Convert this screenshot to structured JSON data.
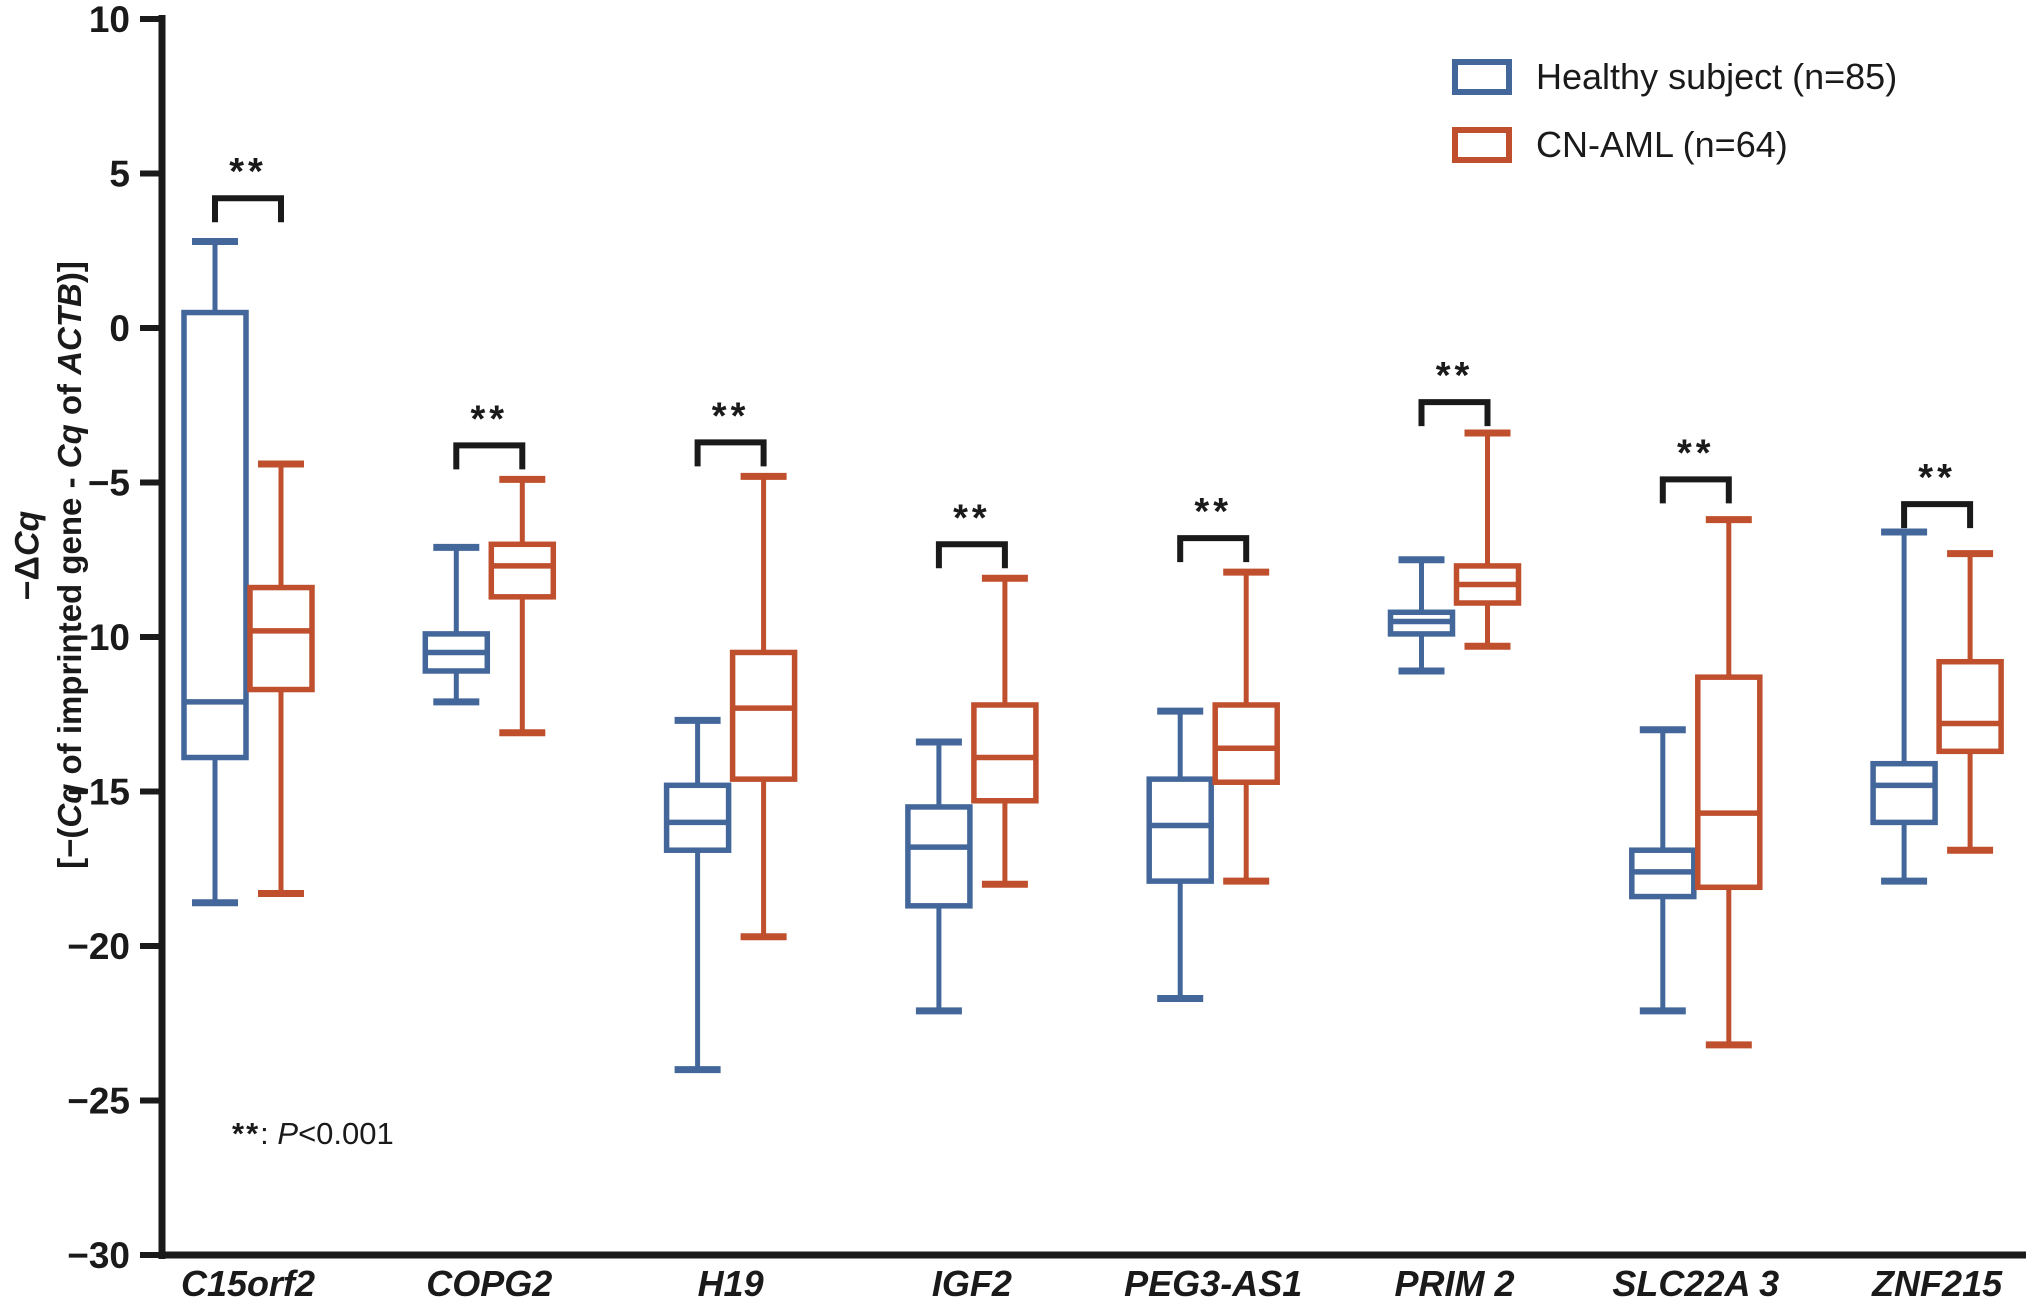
{
  "colors": {
    "healthy": "#43679b",
    "cnaml": "#bf4f2d",
    "axis": "#1a1a1a",
    "background": "#ffffff"
  },
  "legend": {
    "items": [
      {
        "label": "Healthy subject (n=85)"
      },
      {
        "label": "CN-AML (n=64)"
      }
    ]
  },
  "y_axis": {
    "title_main_prefix": "−Δ",
    "title_main_italic": "Cq",
    "sub_1": "[−(",
    "sub_2": "Cq",
    "sub_3": " of imprinted gene - ",
    "sub_4": "Cq",
    "sub_5": " of ",
    "sub_6": "ACTB",
    "sub_7": ")]",
    "tick_labels": [
      "10",
      "5",
      "0",
      "−5",
      "−10",
      "−15",
      "−20",
      "−25",
      "−30"
    ]
  },
  "annotation": {
    "stars": "**",
    "colon": ": ",
    "p": "P",
    "value": "<0.001"
  },
  "chart_data": {
    "type": "boxplot",
    "title": "",
    "ylabel": "−ΔCq [−(Cq of imprinted gene - Cq of ACTB)]",
    "xlabel": "",
    "ylim": [
      -30,
      10
    ],
    "yticks": [
      10,
      5,
      0,
      -5,
      -10,
      -15,
      -20,
      -25,
      -30
    ],
    "grid": false,
    "legend_position": "top-right",
    "categories": [
      "C15orf2",
      "COPG2",
      "H19",
      "IGF2",
      "PEG3-AS1",
      "PRIM 2",
      "SLC22A 3",
      "ZNF215"
    ],
    "series": [
      {
        "name": "Healthy subject (n=85)",
        "color": "#43679b",
        "boxes": [
          {
            "min": -18.6,
            "q1": -13.9,
            "median": -12.1,
            "q3": 0.5,
            "max": 2.8
          },
          {
            "min": -12.1,
            "q1": -11.1,
            "median": -10.5,
            "q3": -9.9,
            "max": -7.1
          },
          {
            "min": -24.0,
            "q1": -16.9,
            "median": -16.0,
            "q3": -14.8,
            "max": -12.7
          },
          {
            "min": -22.1,
            "q1": -18.7,
            "median": -16.8,
            "q3": -15.5,
            "max": -13.4
          },
          {
            "min": -21.7,
            "q1": -17.9,
            "median": -16.1,
            "q3": -14.6,
            "max": -12.4
          },
          {
            "min": -11.1,
            "q1": -9.9,
            "median": -9.5,
            "q3": -9.2,
            "max": -7.5
          },
          {
            "min": -22.1,
            "q1": -18.4,
            "median": -17.6,
            "q3": -16.9,
            "max": -13.0
          },
          {
            "min": -17.9,
            "q1": -16.0,
            "median": -14.8,
            "q3": -14.1,
            "max": -6.6
          }
        ]
      },
      {
        "name": "CN-AML (n=64)",
        "color": "#bf4f2d",
        "boxes": [
          {
            "min": -18.3,
            "q1": -11.7,
            "median": -9.8,
            "q3": -8.4,
            "max": -4.4
          },
          {
            "min": -13.1,
            "q1": -8.7,
            "median": -7.7,
            "q3": -7.0,
            "max": -4.9
          },
          {
            "min": -19.7,
            "q1": -14.6,
            "median": -12.3,
            "q3": -10.5,
            "max": -4.8
          },
          {
            "min": -18.0,
            "q1": -15.3,
            "median": -13.9,
            "q3": -12.2,
            "max": -8.1
          },
          {
            "min": -17.9,
            "q1": -14.7,
            "median": -13.6,
            "q3": -12.2,
            "max": -7.9
          },
          {
            "min": -10.3,
            "q1": -8.9,
            "median": -8.3,
            "q3": -7.7,
            "max": -3.4
          },
          {
            "min": -23.2,
            "q1": -18.1,
            "median": -15.7,
            "q3": -11.3,
            "max": -6.2
          },
          {
            "min": -16.9,
            "q1": -13.7,
            "median": -12.8,
            "q3": -10.8,
            "max": -7.3
          }
        ]
      }
    ],
    "significance": {
      "label": "**",
      "bracket_y": [
        4.2,
        -3.8,
        -3.7,
        -7.0,
        -6.8,
        -2.4,
        -4.9,
        -5.7
      ]
    },
    "p_note": "**: P<0.001"
  }
}
